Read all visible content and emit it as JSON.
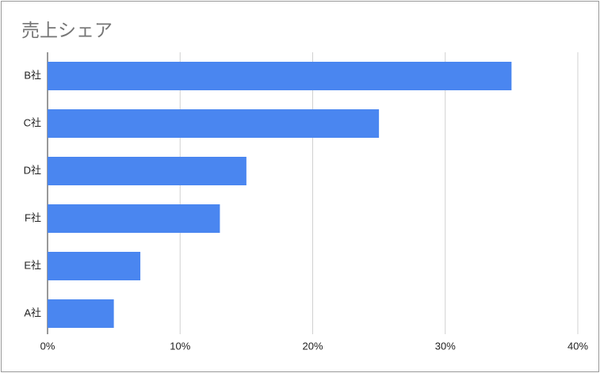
{
  "chart_data": {
    "type": "hbar",
    "title": "売上シェア",
    "categories": [
      "B社",
      "C社",
      "D社",
      "F社",
      "E社",
      "A社"
    ],
    "values": [
      35,
      25,
      15,
      13,
      7,
      5
    ],
    "color": "#4a86f0",
    "xlim": [
      0,
      40
    ],
    "xticks": [
      {
        "value": 0,
        "label": "0%"
      },
      {
        "value": 10,
        "label": "10%"
      },
      {
        "value": 20,
        "label": "20%"
      },
      {
        "value": 30,
        "label": "30%"
      },
      {
        "value": 40,
        "label": "40%"
      }
    ],
    "grid": true
  }
}
